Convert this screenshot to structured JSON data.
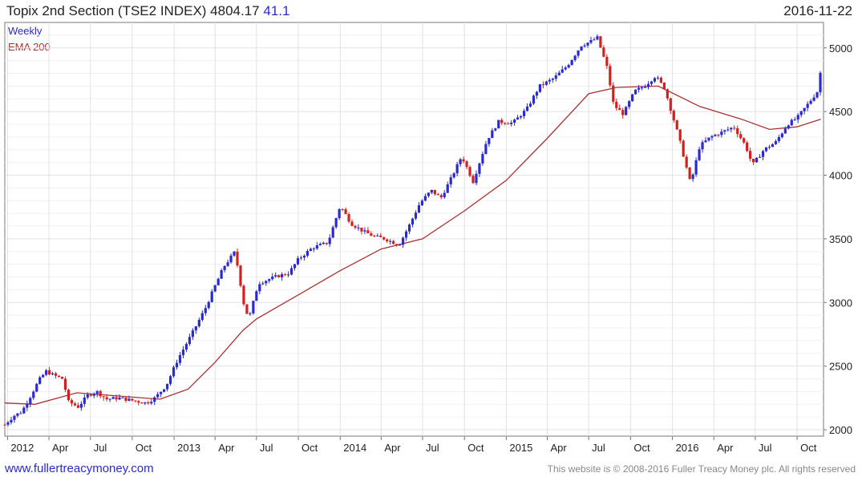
{
  "header": {
    "title": "Topix 2nd Section (TSE2 INDEX) 4804.17",
    "change": "41.1",
    "date": "2016-11-22"
  },
  "legend": {
    "weekly": "Weekly",
    "ema": "EMA 200"
  },
  "footer": {
    "link": "www.fullertreacymoney.com",
    "copyright": "This website is © 2008-2016 Fuller Treacy Money plc. All rights reserved"
  },
  "colors": {
    "up": "#2a2ad0",
    "down": "#d22020",
    "ema": "#a83232",
    "grid": "#e2e2e2"
  },
  "chart_data": {
    "type": "line",
    "subtype": "weekly candlestick with EMA",
    "title": "Topix 2nd Section (TSE2 INDEX) 4804.17",
    "ylim": [
      1950,
      5200
    ],
    "yticks": [
      2000,
      2500,
      3000,
      3500,
      4000,
      4500,
      5000
    ],
    "xlim": [
      "2011-12-26",
      "2016-11-28"
    ],
    "x_ticks": [
      {
        "label": "2012",
        "date": "2012-01-01"
      },
      {
        "label": "Apr",
        "date": "2012-04-01"
      },
      {
        "label": "Jul",
        "date": "2012-07-01"
      },
      {
        "label": "Oct",
        "date": "2012-10-01"
      },
      {
        "label": "2013",
        "date": "2013-01-01"
      },
      {
        "label": "Apr",
        "date": "2013-04-01"
      },
      {
        "label": "Jul",
        "date": "2013-07-01"
      },
      {
        "label": "Oct",
        "date": "2013-10-01"
      },
      {
        "label": "2014",
        "date": "2014-01-01"
      },
      {
        "label": "Apr",
        "date": "2014-04-01"
      },
      {
        "label": "Jul",
        "date": "2014-07-01"
      },
      {
        "label": "Oct",
        "date": "2014-10-01"
      },
      {
        "label": "2015",
        "date": "2015-01-01"
      },
      {
        "label": "Apr",
        "date": "2015-04-01"
      },
      {
        "label": "Jul",
        "date": "2015-07-01"
      },
      {
        "label": "Oct",
        "date": "2015-10-01"
      },
      {
        "label": "2016",
        "date": "2016-01-01"
      },
      {
        "label": "Apr",
        "date": "2016-04-01"
      },
      {
        "label": "Jul",
        "date": "2016-07-01"
      },
      {
        "label": "Oct",
        "date": "2016-10-01"
      }
    ],
    "grid": true,
    "series": [
      {
        "name": "Weekly",
        "style": "candlestick",
        "close_points": [
          [
            "2011-12-26",
            2040
          ],
          [
            "2012-01-15",
            2110
          ],
          [
            "2012-02-01",
            2140
          ],
          [
            "2012-02-20",
            2260
          ],
          [
            "2012-03-10",
            2390
          ],
          [
            "2012-03-26",
            2460
          ],
          [
            "2012-04-10",
            2430
          ],
          [
            "2012-05-01",
            2400
          ],
          [
            "2012-05-14",
            2220
          ],
          [
            "2012-06-04",
            2180
          ],
          [
            "2012-06-25",
            2270
          ],
          [
            "2012-07-15",
            2300
          ],
          [
            "2012-08-05",
            2240
          ],
          [
            "2012-09-01",
            2250
          ],
          [
            "2012-10-01",
            2230
          ],
          [
            "2012-11-01",
            2210
          ],
          [
            "2012-11-20",
            2250
          ],
          [
            "2012-12-15",
            2350
          ],
          [
            "2013-01-10",
            2560
          ],
          [
            "2013-02-10",
            2760
          ],
          [
            "2013-03-10",
            2950
          ],
          [
            "2013-04-01",
            3130
          ],
          [
            "2013-04-20",
            3280
          ],
          [
            "2013-05-15",
            3400
          ],
          [
            "2013-06-05",
            2950
          ],
          [
            "2013-06-15",
            2880
          ],
          [
            "2013-07-05",
            3150
          ],
          [
            "2013-08-10",
            3200
          ],
          [
            "2013-09-10",
            3230
          ],
          [
            "2013-10-01",
            3340
          ],
          [
            "2013-11-01",
            3430
          ],
          [
            "2013-12-05",
            3470
          ],
          [
            "2014-01-01",
            3760
          ],
          [
            "2014-01-25",
            3620
          ],
          [
            "2014-02-20",
            3560
          ],
          [
            "2014-03-15",
            3520
          ],
          [
            "2014-04-10",
            3500
          ],
          [
            "2014-05-10",
            3450
          ],
          [
            "2014-06-01",
            3600
          ],
          [
            "2014-06-25",
            3780
          ],
          [
            "2014-07-20",
            3880
          ],
          [
            "2014-08-10",
            3820
          ],
          [
            "2014-09-01",
            3970
          ],
          [
            "2014-09-25",
            4150
          ],
          [
            "2014-10-20",
            3950
          ],
          [
            "2014-11-20",
            4280
          ],
          [
            "2014-12-15",
            4420
          ],
          [
            "2015-01-15",
            4410
          ],
          [
            "2015-02-15",
            4520
          ],
          [
            "2015-03-15",
            4700
          ],
          [
            "2015-04-15",
            4760
          ],
          [
            "2015-05-15",
            4860
          ],
          [
            "2015-06-15",
            5020
          ],
          [
            "2015-07-05",
            5050
          ],
          [
            "2015-07-20",
            5080
          ],
          [
            "2015-08-10",
            4850
          ],
          [
            "2015-08-25",
            4550
          ],
          [
            "2015-09-15",
            4480
          ],
          [
            "2015-10-10",
            4660
          ],
          [
            "2015-11-01",
            4700
          ],
          [
            "2015-11-25",
            4780
          ],
          [
            "2015-12-15",
            4680
          ],
          [
            "2016-01-15",
            4300
          ],
          [
            "2016-02-10",
            3930
          ],
          [
            "2016-03-01",
            4230
          ],
          [
            "2016-03-25",
            4300
          ],
          [
            "2016-04-20",
            4340
          ],
          [
            "2016-05-15",
            4380
          ],
          [
            "2016-06-10",
            4230
          ],
          [
            "2016-06-25",
            4080
          ],
          [
            "2016-07-20",
            4200
          ],
          [
            "2016-08-15",
            4260
          ],
          [
            "2016-09-10",
            4400
          ],
          [
            "2016-10-01",
            4450
          ],
          [
            "2016-10-25",
            4560
          ],
          [
            "2016-11-15",
            4660
          ],
          [
            "2016-11-22",
            4804
          ]
        ]
      },
      {
        "name": "EMA 200",
        "style": "line",
        "points": [
          [
            "2011-12-26",
            2210
          ],
          [
            "2012-03-01",
            2200
          ],
          [
            "2012-06-01",
            2290
          ],
          [
            "2012-09-01",
            2265
          ],
          [
            "2012-12-01",
            2240
          ],
          [
            "2013-02-01",
            2320
          ],
          [
            "2013-04-01",
            2530
          ],
          [
            "2013-06-01",
            2780
          ],
          [
            "2013-07-01",
            2870
          ],
          [
            "2013-10-01",
            3060
          ],
          [
            "2014-01-01",
            3250
          ],
          [
            "2014-04-01",
            3420
          ],
          [
            "2014-07-01",
            3500
          ],
          [
            "2014-10-01",
            3720
          ],
          [
            "2015-01-01",
            3960
          ],
          [
            "2015-04-01",
            4290
          ],
          [
            "2015-07-01",
            4640
          ],
          [
            "2015-09-01",
            4690
          ],
          [
            "2015-12-01",
            4700
          ],
          [
            "2016-03-01",
            4540
          ],
          [
            "2016-06-01",
            4440
          ],
          [
            "2016-08-01",
            4360
          ],
          [
            "2016-10-01",
            4380
          ],
          [
            "2016-11-22",
            4440
          ]
        ]
      }
    ]
  }
}
